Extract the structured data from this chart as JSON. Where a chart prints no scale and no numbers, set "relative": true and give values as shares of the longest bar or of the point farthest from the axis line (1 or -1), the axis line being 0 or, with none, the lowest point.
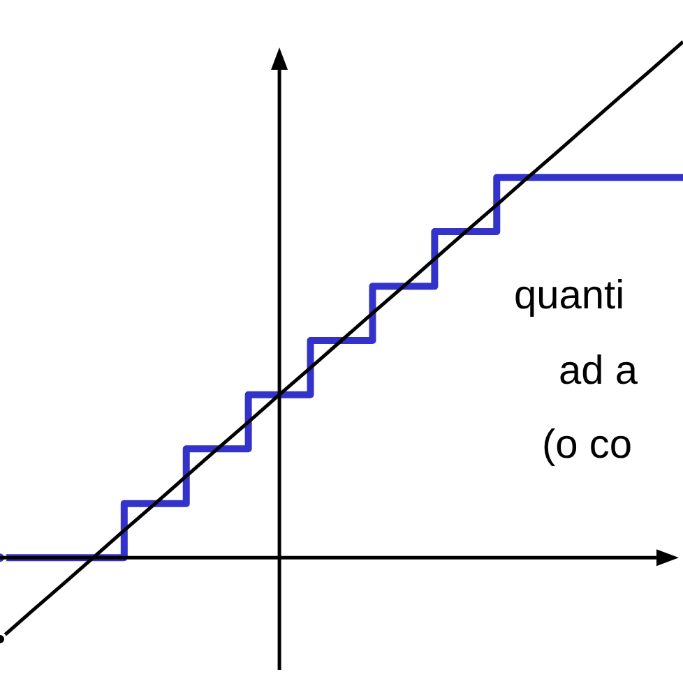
{
  "chart_data": {
    "type": "line",
    "relative": true,
    "categories": [
      null,
      null,
      null,
      null,
      null,
      null,
      null,
      null,
      null,
      null,
      null,
      null,
      null,
      null,
      null,
      null,
      null,
      null,
      null,
      null,
      null,
      null,
      null
    ],
    "series": [
      {
        "type": "step",
        "color": "#3333cc",
        "values": [
          0,
          0,
          0,
          0,
          0.105,
          0.105,
          0.211,
          0.211,
          0.316,
          0.316,
          0.421,
          0.421,
          0.526,
          0.526,
          0.632,
          0.632,
          0.737,
          0.737,
          0.737,
          0.737,
          0.737,
          0.737,
          0.737
        ]
      },
      {
        "type": "line",
        "color": "#000000",
        "values": [
          -0.158,
          -0.105,
          -0.053,
          0,
          0.053,
          0.105,
          0.158,
          0.211,
          0.263,
          0.316,
          0.368,
          0.421,
          0.474,
          0.526,
          0.579,
          0.632,
          0.684,
          0.737,
          0.789,
          0.842,
          0.895,
          0.947,
          1
        ]
      }
    ],
    "annotations": [
      "quanti",
      "ad a",
      "(o co"
    ]
  }
}
